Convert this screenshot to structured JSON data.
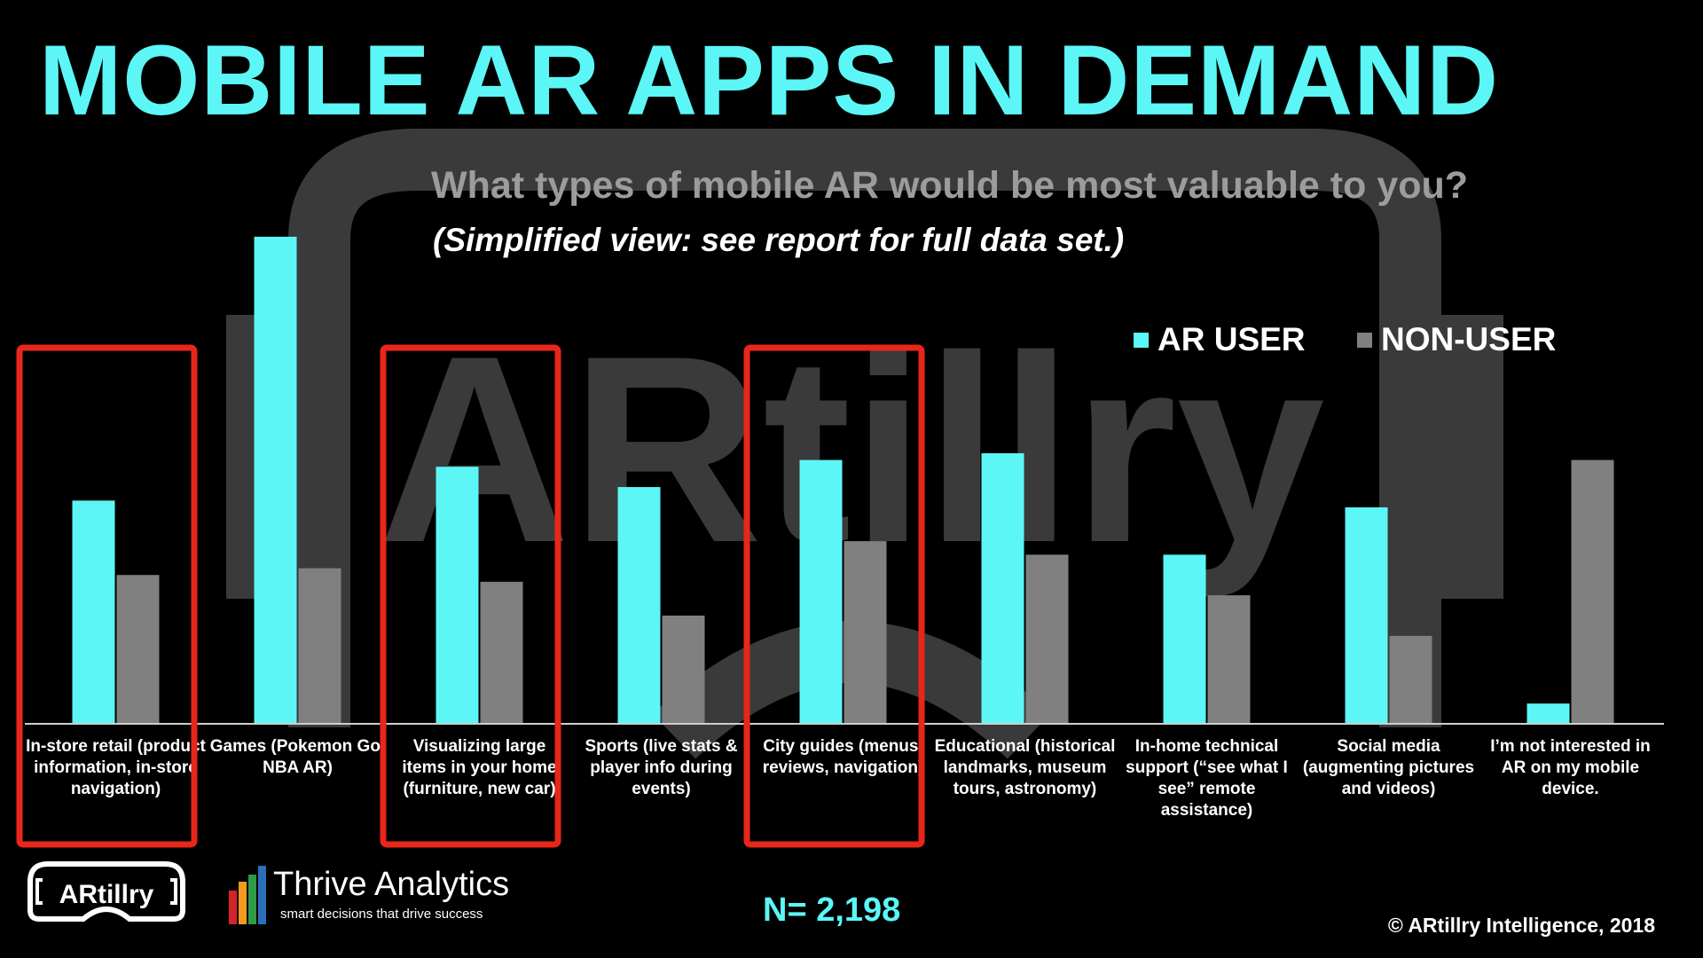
{
  "title": "MOBILE AR APPS IN DEMAND",
  "subtitle": "What types of mobile AR would be most valuable to you?",
  "note": "(Simplified view: see report for full data set.)",
  "watermark_text": "ARtillry",
  "legend": {
    "ar_user": "AR USER",
    "non_user": "NON-USER"
  },
  "categories": [
    "In-store retail (product information, in-store navigation)",
    "Games (Pokemon Go, NBA AR)",
    "Visualizing large items in your home (furniture, new car)",
    "Sports (live stats & player info during events)",
    "City guides (menus, reviews, navigation)",
    "Educational (historical landmarks, museum tours, astronomy)",
    "In-home technical support (“see what I see” remote assistance)",
    "Social media (augmenting pictures and videos)",
    "I’m not interested in AR on my mobile device."
  ],
  "highlighted": [
    "In-store retail (product information, in-store navigation)",
    "Visualizing large items in your home (furniture, new car)",
    "City guides (menus, reviews, navigation)"
  ],
  "colors": {
    "ar_user": "#5cf6f6",
    "non_user": "#808080",
    "highlight": "#e8261a",
    "title": "#5cf6f6"
  },
  "chart_data": {
    "type": "bar",
    "categories": [
      "In-store retail (product information, in-store navigation)",
      "Games (Pokemon Go, NBA AR)",
      "Visualizing large items in your home (furniture, new car)",
      "Sports (live stats & player info during events)",
      "City guides (menus, reviews, navigation)",
      "Educational (historical landmarks, museum tours, astronomy)",
      "In-home technical support (“see what I see” remote assistance)",
      "Social media (augmenting pictures and videos)",
      "I’m not interested in AR on my mobile device."
    ],
    "series": [
      {
        "name": "AR USER",
        "values": [
          33,
          72,
          38,
          35,
          39,
          40,
          25,
          32,
          3
        ]
      },
      {
        "name": "NON-USER",
        "values": [
          22,
          23,
          21,
          16,
          27,
          25,
          19,
          13,
          39
        ]
      }
    ],
    "ylim": [
      0,
      75
    ],
    "grid": false,
    "legend_position": "top-right"
  },
  "footer": {
    "n_label": "N= 2,198",
    "copyright": "© ARtillry Intelligence, 2018",
    "logo_artillry": "ARtillry",
    "thrive_name": "Thrive Analytics",
    "thrive_tagline": "smart decisions that drive success"
  }
}
